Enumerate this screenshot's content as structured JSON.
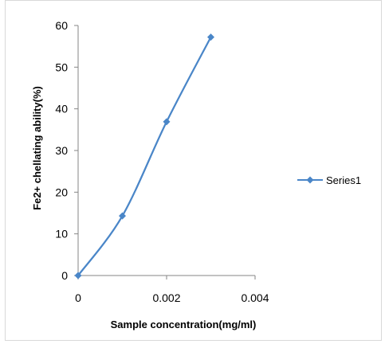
{
  "chart_data": {
    "type": "line",
    "title": "",
    "xlabel": "Sample concentration(mg/ml)",
    "ylabel": "Fe2+ chellating ability(%)",
    "xlim": [
      0,
      0.004
    ],
    "ylim": [
      0,
      60
    ],
    "x_ticks": [
      "0",
      "0.002",
      "0.004"
    ],
    "y_ticks": [
      "0",
      "10",
      "20",
      "30",
      "40",
      "50",
      "60"
    ],
    "grid": false,
    "legend_position": "right",
    "series": [
      {
        "name": "Series1",
        "color": "#4a86c8",
        "marker": "diamond",
        "smooth": true,
        "x": [
          0,
          0.001,
          0.002,
          0.003
        ],
        "y": [
          0,
          14.3,
          36.9,
          57.2
        ]
      }
    ]
  }
}
